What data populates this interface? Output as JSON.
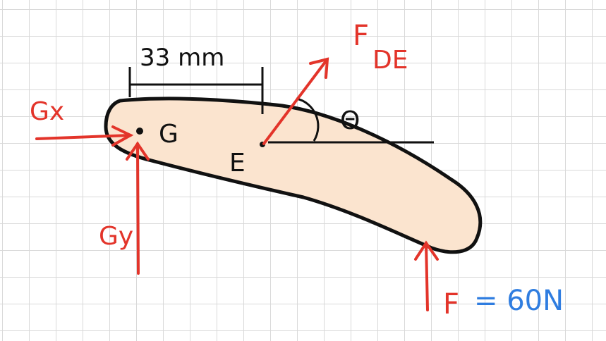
{
  "colors": {
    "ink": "#111111",
    "force_red": "#e3342a",
    "value_blue": "#2f7de0",
    "body_fill": "#fbe4cf",
    "grid": "#d9d9d9"
  },
  "labels": {
    "dimension": "33 mm",
    "point_g": "G",
    "point_e": "E",
    "force_gx": "Gx",
    "force_gy": "Gy",
    "force_fde_main": "F",
    "force_fde_sub": "DE",
    "angle": "Θ",
    "force_f": "F",
    "force_f_value": "= 60N"
  }
}
